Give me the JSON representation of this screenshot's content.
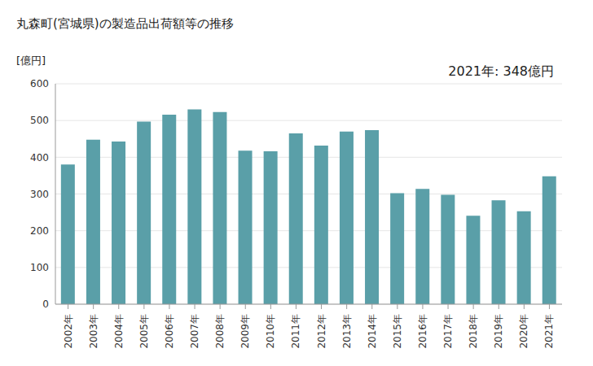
{
  "chart_data": {
    "type": "bar",
    "title": "丸森町(宮城県)の製造品出荷額等の推移",
    "ylabel": "[億円]",
    "annotation": "2021年: 348億円",
    "categories": [
      "2002年",
      "2003年",
      "2004年",
      "2005年",
      "2006年",
      "2007年",
      "2008年",
      "2009年",
      "2010年",
      "2011年",
      "2012年",
      "2013年",
      "2014年",
      "2015年",
      "2016年",
      "2017年",
      "2018年",
      "2019年",
      "2020年",
      "2021年"
    ],
    "values": [
      380,
      448,
      443,
      497,
      516,
      530,
      523,
      418,
      416,
      465,
      432,
      470,
      474,
      302,
      314,
      298,
      241,
      283,
      253,
      348
    ],
    "color": "#5a9fa8",
    "ylim": [
      0,
      600
    ],
    "yticks": [
      0,
      100,
      200,
      300,
      400,
      500,
      600
    ],
    "grid": true
  }
}
